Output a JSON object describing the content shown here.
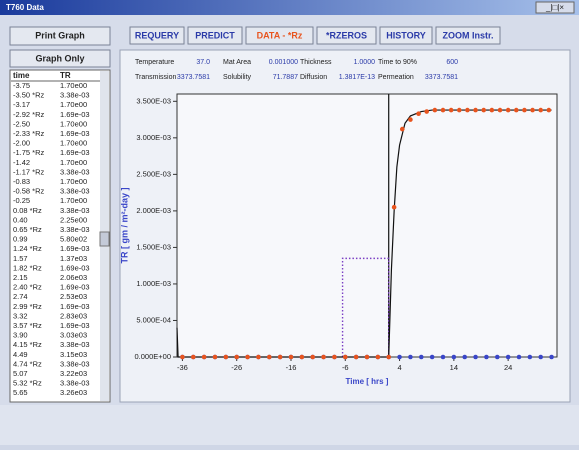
{
  "window": {
    "title": "T760 Data",
    "controls": "_|□|×"
  },
  "buttons": {
    "print": "Print Graph",
    "graph_only": "Graph Only"
  },
  "toolbar": [
    "REQUERY",
    "PREDICT",
    "DATA - *Rz",
    "*RZEROS",
    "HISTORY",
    "ZOOM Instr."
  ],
  "info": [
    [
      {
        "label": "Temperature",
        "value": "37.0"
      },
      {
        "label": "Mat Area",
        "value": "0.001000"
      },
      {
        "label": "Thickness",
        "value": "1.0000"
      },
      {
        "label": "Time to 90%",
        "value": "600"
      }
    ],
    [
      {
        "label": "Transmission",
        "value": "3373.7581"
      },
      {
        "label": "Solubility",
        "value": "71.7887"
      },
      {
        "label": "Diffusion",
        "value": "1.3817E-13"
      },
      {
        "label": "Permeation",
        "value": "3373.7581"
      }
    ]
  ],
  "table": {
    "header": [
      "time",
      "TR"
    ],
    "rows": [
      [
        "-3.75",
        "1.70e00"
      ],
      [
        "-3.50 *Rz",
        "3.38e-03"
      ],
      [
        "-3.17",
        "1.70e00"
      ],
      [
        "-2.92 *Rz",
        "1.69e-03"
      ],
      [
        "-2.50",
        "1.70e00"
      ],
      [
        "-2.33 *Rz",
        "1.69e-03"
      ],
      [
        "-2.00",
        "1.70e00"
      ],
      [
        "-1.75 *Rz",
        "1.69e-03"
      ],
      [
        "-1.42",
        "1.70e00"
      ],
      [
        "-1.17 *Rz",
        "3.38e-03"
      ],
      [
        "-0.83",
        "1.70e00"
      ],
      [
        "-0.58 *Rz",
        "3.38e-03"
      ],
      [
        "-0.25",
        "1.70e00"
      ],
      [
        "0.08 *Rz",
        "3.38e-03"
      ],
      [
        "0.40",
        "2.25e00"
      ],
      [
        "0.65 *Rz",
        "3.38e-03"
      ],
      [
        "0.99",
        "5.80e02"
      ],
      [
        "1.24 *Rz",
        "1.69e-03"
      ],
      [
        "1.57",
        "1.37e03"
      ],
      [
        "1.82 *Rz",
        "1.69e-03"
      ],
      [
        "2.15",
        "2.06e03"
      ],
      [
        "2.40 *Rz",
        "1.69e-03"
      ],
      [
        "2.74",
        "2.53e03"
      ],
      [
        "2.99 *Rz",
        "1.69e-03"
      ],
      [
        "3.32",
        "2.83e03"
      ],
      [
        "3.57 *Rz",
        "1.69e-03"
      ],
      [
        "3.90",
        "3.03e03"
      ],
      [
        "4.15 *Rz",
        "3.38e-03"
      ],
      [
        "4.49",
        "3.15e03"
      ],
      [
        "4.74 *Rz",
        "3.38e-03"
      ],
      [
        "5.07",
        "3.22e03"
      ],
      [
        "5.32 *Rz",
        "3.38e-03"
      ],
      [
        "5.65",
        "3.26e03"
      ]
    ]
  },
  "chart_data": {
    "type": "scatter",
    "xlabel": "Time [ hrs ]",
    "ylabel": "TR [ gm / m²-day ]",
    "xlim": [
      -37,
      33
    ],
    "ylim": [
      0,
      0.0036
    ],
    "xticks": [
      -36,
      -26,
      -16,
      -6,
      4,
      14,
      24
    ],
    "yticks": [
      {
        "value": 0,
        "label": "0.000E+00"
      },
      {
        "value": 0.0005,
        "label": "5.000E-04"
      },
      {
        "value": 0.001,
        "label": "1.000E-03"
      },
      {
        "value": 0.0015,
        "label": "1.500E-03"
      },
      {
        "value": 0.002,
        "label": "2.000E-03"
      },
      {
        "value": 0.0025,
        "label": "2.500E-03"
      },
      {
        "value": 0.003,
        "label": "3.000E-03"
      },
      {
        "value": 0.0035,
        "label": "3.500E-03"
      }
    ],
    "cursor_x": 2,
    "series": [
      {
        "style": "dotted-line",
        "color": "#7b3fc4",
        "x": [
          -6.5,
          -6.5,
          2,
          2
        ],
        "values": [
          0,
          0.00135,
          0.00135,
          0
        ]
      },
      {
        "style": "line",
        "color": "#111111",
        "x": [
          -37,
          -36.8,
          2,
          2.5,
          3,
          3.5,
          4,
          5,
          6,
          8,
          10,
          14,
          20,
          32
        ],
        "values": [
          0.0004,
          0,
          0,
          0.0012,
          0.002,
          0.0026,
          0.0029,
          0.0032,
          0.0033,
          0.00336,
          0.00338,
          0.00338,
          0.00338,
          0.00338
        ]
      },
      {
        "style": "points",
        "color": "#3a46c8",
        "x": [
          -36,
          -34,
          -32,
          -30,
          -28,
          -26,
          -24,
          -22,
          -20,
          -18,
          -16,
          -14,
          -12,
          -10,
          -8,
          -6,
          -4,
          -2,
          0,
          2,
          4,
          6,
          8,
          10,
          12,
          14,
          16,
          18,
          20,
          22,
          24,
          26,
          28,
          30,
          32
        ],
        "values": [
          0,
          0,
          0,
          0,
          0,
          0,
          0,
          0,
          0,
          0,
          0,
          0,
          0,
          0,
          0,
          0,
          0,
          0,
          0,
          0,
          0,
          0,
          0,
          0,
          0,
          0,
          0,
          0,
          0,
          0,
          0,
          0,
          0,
          0,
          0
        ]
      },
      {
        "style": "points",
        "color": "#e8541e",
        "x": [
          -36,
          -34,
          -32,
          -30,
          -28,
          -26,
          -24,
          -22,
          -20,
          -18,
          -16,
          -14,
          -12,
          -10,
          -8,
          -6,
          -4,
          -2,
          0,
          2,
          3,
          4.5,
          6,
          7.5,
          9,
          10.5,
          12,
          13.5,
          15,
          16.5,
          18,
          19.5,
          21,
          22.5,
          24,
          25.5,
          27,
          28.5,
          30,
          31.5
        ],
        "values": [
          0,
          0,
          0,
          0,
          0,
          0,
          0,
          0,
          0,
          0,
          0,
          0,
          0,
          0,
          0,
          0,
          0,
          0,
          0,
          0,
          0.00205,
          0.00312,
          0.00325,
          0.00333,
          0.00336,
          0.00338,
          0.00338,
          0.00338,
          0.00338,
          0.00338,
          0.00338,
          0.00338,
          0.00338,
          0.00338,
          0.00338,
          0.00338,
          0.00338,
          0.00338,
          0.00338,
          0.00338
        ]
      }
    ]
  }
}
